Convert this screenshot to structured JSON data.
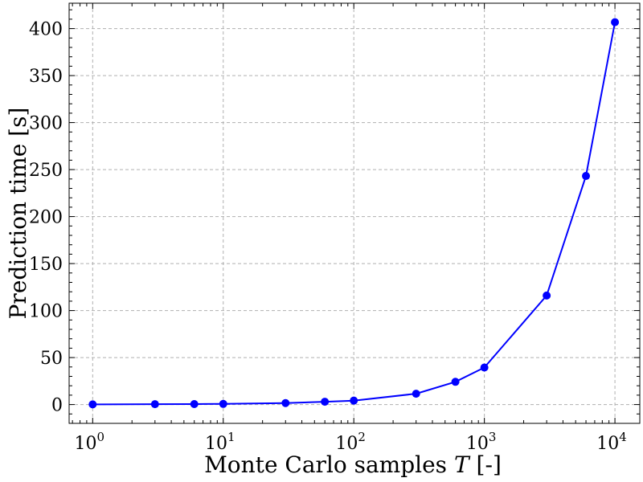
{
  "chart_data": {
    "type": "line",
    "x_scale": "log",
    "x": [
      1,
      3,
      6,
      10,
      30,
      60,
      100,
      300,
      600,
      1000,
      3000,
      6000,
      10000
    ],
    "series": [
      {
        "color": "#0000ff",
        "marker": "circle",
        "values": [
          0.2,
          0.4,
          0.5,
          0.7,
          1.6,
          3.0,
          4.2,
          11.5,
          24.2,
          39.4,
          116.0,
          243.2,
          406.8
        ]
      }
    ],
    "xlabel": "Monte Carlo samples T [-]",
    "xlabel_parts": {
      "prefix": "Monte Carlo samples ",
      "var": "T",
      "suffix": " [-]"
    },
    "ylabel": "Prediction time [s]",
    "xlim": [
      0.66,
      15500
    ],
    "ylim": [
      -20,
      427
    ],
    "x_ticks": [
      {
        "value": 1,
        "base": "10",
        "exp": "0"
      },
      {
        "value": 10,
        "base": "10",
        "exp": "1"
      },
      {
        "value": 100,
        "base": "10",
        "exp": "2"
      },
      {
        "value": 1000,
        "base": "10",
        "exp": "3"
      },
      {
        "value": 10000,
        "base": "10",
        "exp": "4"
      }
    ],
    "y_ticks": [
      0,
      50,
      100,
      150,
      200,
      250,
      300,
      350,
      400
    ],
    "grid": true
  }
}
